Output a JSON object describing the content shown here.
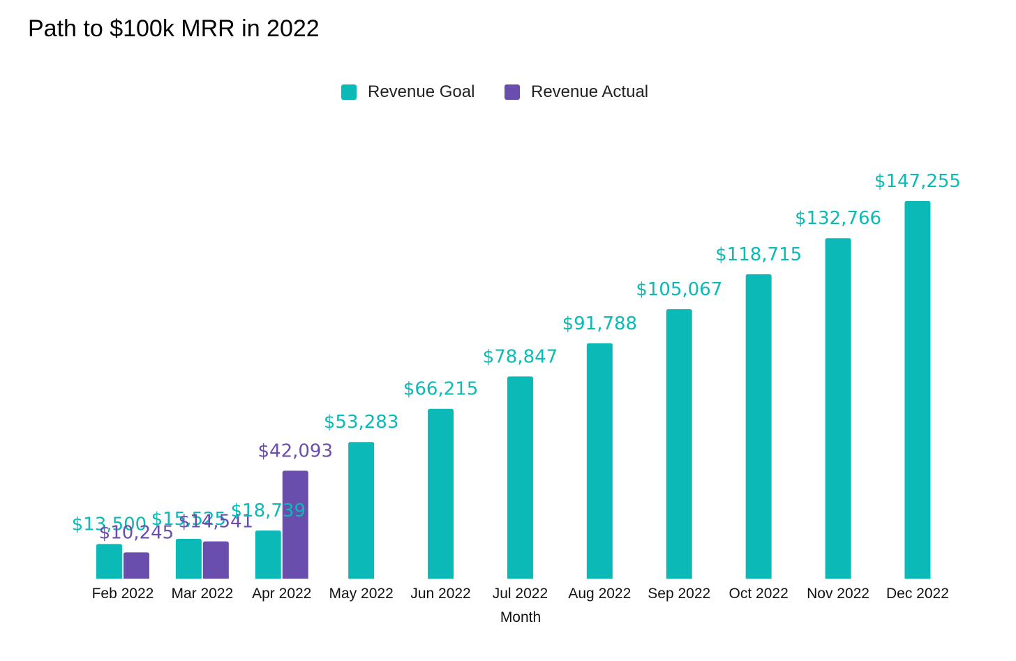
{
  "chart_data": {
    "type": "bar",
    "title": "Path to $100k MRR in 2022",
    "xlabel": "Month",
    "ylabel": "",
    "categories": [
      "Feb 2022",
      "Mar 2022",
      "Apr 2022",
      "May 2022",
      "Jun 2022",
      "Jul 2022",
      "Aug 2022",
      "Sep 2022",
      "Oct 2022",
      "Nov 2022",
      "Dec 2022"
    ],
    "series": [
      {
        "name": "Revenue Goal",
        "color": "#0bbab7",
        "values": [
          13500,
          15525,
          18739,
          53283,
          66215,
          78847,
          91788,
          105067,
          118715,
          132766,
          147255
        ],
        "labels": [
          "$13,500",
          "$15,525",
          "$18,739",
          "$53,283",
          "$66,215",
          "$78,847",
          "$91,788",
          "$105,067",
          "$118,715",
          "$132,766",
          "$147,255"
        ]
      },
      {
        "name": "Revenue Actual",
        "color": "#6a4eae",
        "values": [
          10245,
          14541,
          42093,
          null,
          null,
          null,
          null,
          null,
          null,
          null,
          null
        ],
        "labels": [
          "$10,245",
          "$14,541",
          "$42,093",
          null,
          null,
          null,
          null,
          null,
          null,
          null,
          null
        ]
      }
    ],
    "ylim": [
      0,
      147255
    ],
    "grid": false,
    "legend_position": "top-center"
  }
}
